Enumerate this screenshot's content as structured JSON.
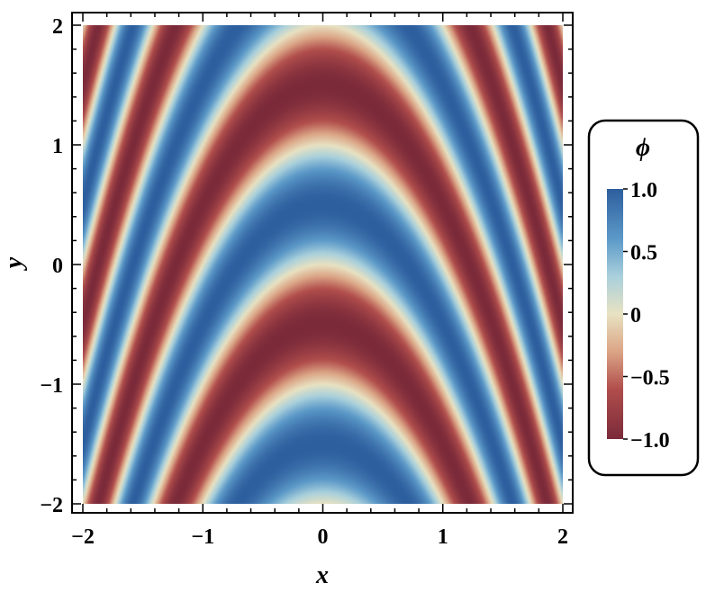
{
  "chart_data": {
    "type": "heatmap",
    "function": "sin(pi*(x^2 + y))",
    "xlabel": "x",
    "ylabel": "y",
    "xlim": [
      -2,
      2
    ],
    "ylim": [
      -2,
      2
    ],
    "xticks": [
      {
        "value": -2,
        "label": "−2"
      },
      {
        "value": -1,
        "label": "−1"
      },
      {
        "value": 0,
        "label": "0"
      },
      {
        "value": 1,
        "label": "1"
      },
      {
        "value": 2,
        "label": "2"
      }
    ],
    "yticks": [
      {
        "value": -2,
        "label": "−2"
      },
      {
        "value": -1,
        "label": "−1"
      },
      {
        "value": 0,
        "label": "0"
      },
      {
        "value": 1,
        "label": "1"
      },
      {
        "value": 2,
        "label": "2"
      }
    ],
    "legend": {
      "title": "ϕ",
      "placement": "right",
      "range": [
        -1.0,
        1.0
      ],
      "ticks": [
        {
          "value": 1.0,
          "label": "1.0"
        },
        {
          "value": 0.5,
          "label": "0.5"
        },
        {
          "value": 0,
          "label": "0"
        },
        {
          "value": -0.5,
          "label": "−0.5"
        },
        {
          "value": -1.0,
          "label": "−1.0"
        }
      ]
    },
    "colormap": [
      {
        "stop": -1.0,
        "color": "#7b2a3a"
      },
      {
        "stop": -0.6,
        "color": "#b14e4c"
      },
      {
        "stop": -0.3,
        "color": "#dba586"
      },
      {
        "stop": 0.0,
        "color": "#e8e2c2"
      },
      {
        "stop": 0.3,
        "color": "#a9d0dc"
      },
      {
        "stop": 0.6,
        "color": "#5c99c8"
      },
      {
        "stop": 1.0,
        "color": "#2d5e9e"
      }
    ]
  }
}
